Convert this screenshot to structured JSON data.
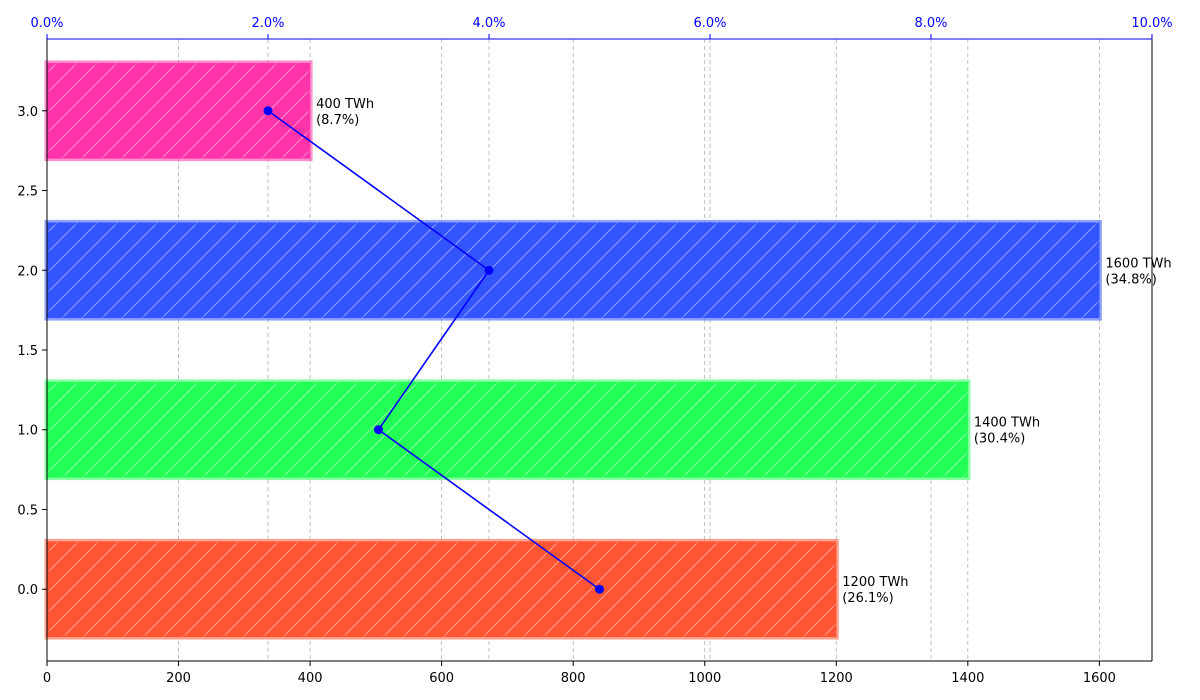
{
  "chart_data": {
    "type": "bar",
    "orientation": "horizontal",
    "title": "",
    "xlabel": "",
    "ylabel": "",
    "xlim": [
      0,
      1680
    ],
    "ylim": [
      -0.45,
      3.45
    ],
    "x_ticks": [
      0,
      200,
      400,
      600,
      800,
      1000,
      1200,
      1400,
      1600
    ],
    "y_ticks": [
      0.0,
      0.5,
      1.0,
      1.5,
      2.0,
      2.5,
      3.0
    ],
    "y_tick_labels": [
      "0.0",
      "0.5",
      "1.0",
      "1.5",
      "2.0",
      "2.5",
      "3.0"
    ],
    "bars": [
      {
        "y": 0,
        "value": 1200,
        "label_value": "1200 TWh",
        "label_pct": "(26.1%)",
        "color": "#ff5533"
      },
      {
        "y": 1,
        "value": 1400,
        "label_value": "1400 TWh",
        "label_pct": "(30.4%)",
        "color": "#22ff55"
      },
      {
        "y": 2,
        "value": 1600,
        "label_value": "1600 TWh",
        "label_pct": "(34.8%)",
        "color": "#3355ff"
      },
      {
        "y": 3,
        "value": 400,
        "label_value": "400 TWh",
        "label_pct": "(8.7%)",
        "color": "#ff33aa"
      }
    ],
    "secondary_axis": {
      "position": "top",
      "color": "#0000ff",
      "xlim": [
        0,
        10
      ],
      "ticks": [
        0,
        2,
        4,
        6,
        8,
        10
      ],
      "tick_labels": [
        "0.0%",
        "2.0%",
        "4.0%",
        "6.0%",
        "8.0%",
        "10.0%"
      ]
    },
    "line_series": {
      "color": "#0000ff",
      "points": [
        {
          "y": 0,
          "x": 5.0
        },
        {
          "y": 1,
          "x": 3.0
        },
        {
          "y": 2,
          "x": 4.0
        },
        {
          "y": 3,
          "x": 2.0
        }
      ]
    },
    "grid": "vertical-dashed",
    "bar_hatch": "diagonal"
  }
}
